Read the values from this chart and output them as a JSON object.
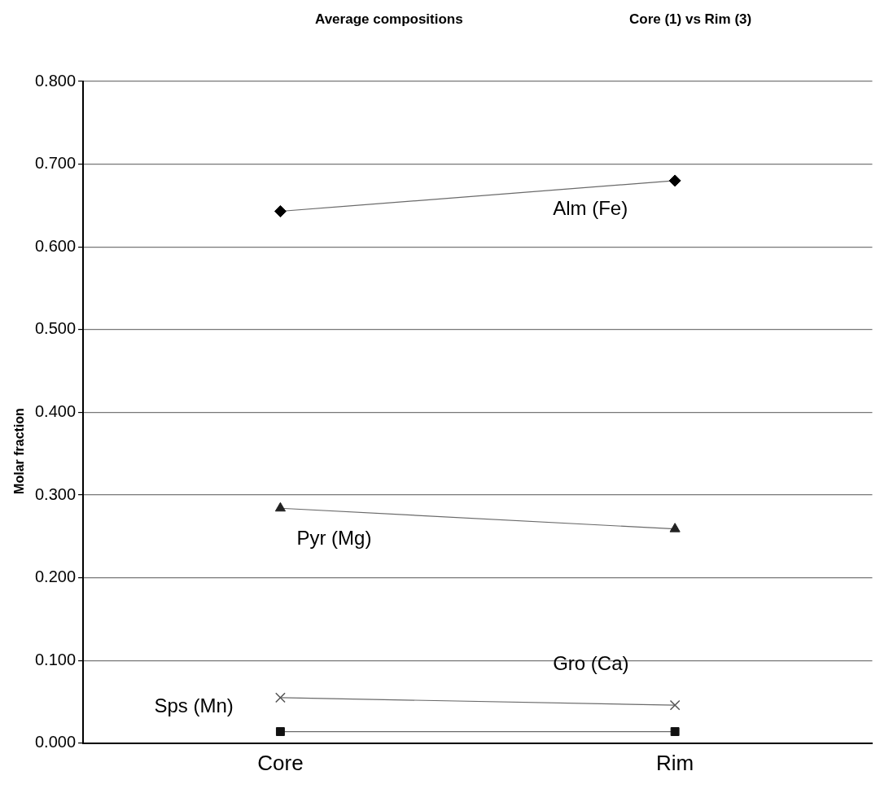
{
  "chart_data": {
    "type": "line",
    "title": "Average compositions",
    "subtitle": "Core (1) vs Rim (3)",
    "ylabel": "Molar fraction",
    "categories": [
      "Core",
      "Rim"
    ],
    "series": [
      {
        "name": "Alm (Fe)",
        "color": "#000000",
        "marker": "diamond",
        "values": [
          0.643,
          0.68
        ]
      },
      {
        "name": "Pyr (Mg)",
        "color": "#222222",
        "marker": "triangle",
        "values": [
          0.284,
          0.259
        ]
      },
      {
        "name": "Gro (Ca)",
        "color": "#555555",
        "marker": "cross",
        "values": [
          0.055,
          0.046
        ]
      },
      {
        "name": "Sps (Mn)",
        "color": "#111111",
        "marker": "square",
        "values": [
          0.014,
          0.014
        ]
      }
    ],
    "ylim": [
      0,
      0.8
    ],
    "yticks": [
      {
        "value": 0,
        "label": "0.000"
      },
      {
        "value": 0.1,
        "label": "0.100"
      },
      {
        "value": 0.2,
        "label": "0.200"
      },
      {
        "value": 0.3,
        "label": "0.300"
      },
      {
        "value": 0.4,
        "label": "0.400"
      },
      {
        "value": 0.5,
        "label": "0.500"
      },
      {
        "value": 0.6,
        "label": "0.600"
      },
      {
        "value": 0.7,
        "label": "0.700"
      },
      {
        "value": 0.8,
        "label": "0.800"
      }
    ],
    "grid": "y",
    "legend": false,
    "line_style": "solid"
  }
}
